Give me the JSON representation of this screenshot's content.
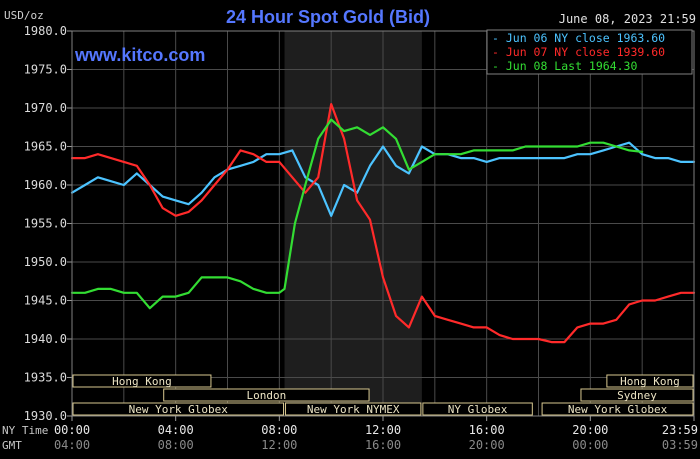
{
  "chart_data": {
    "type": "line",
    "title": "24 Hour Spot Gold (Bid)",
    "watermark": "www.kitco.com",
    "timestamp": "June 08, 2023 21:59",
    "ylabel": "USD/oz",
    "ylim": [
      1930,
      1980
    ],
    "yticks": [
      "1980.0",
      "1975.0",
      "1970.0",
      "1965.0",
      "1960.0",
      "1955.0",
      "1950.0",
      "1945.0",
      "1940.0",
      "1935.0",
      "1930.0"
    ],
    "xlim": [
      0,
      24
    ],
    "grid": true,
    "legend_position": "top-right",
    "time_rows": [
      {
        "label": "NY Time",
        "ticks": [
          {
            "h": 0,
            "t": "00:00"
          },
          {
            "h": 4,
            "t": "04:00"
          },
          {
            "h": 8,
            "t": "08:00"
          },
          {
            "h": 12,
            "t": "12:00"
          },
          {
            "h": 16,
            "t": "16:00"
          },
          {
            "h": 20,
            "t": "20:00"
          },
          {
            "h": 24,
            "t": "23:59"
          }
        ]
      },
      {
        "label": "GMT",
        "ticks": [
          {
            "h": 0,
            "t": "04:00"
          },
          {
            "h": 4,
            "t": "08:00"
          },
          {
            "h": 8,
            "t": "12:00"
          },
          {
            "h": 12,
            "t": "16:00"
          },
          {
            "h": 16,
            "t": "20:00"
          },
          {
            "h": 20,
            "t": "00:00"
          },
          {
            "h": 24,
            "t": "03:59"
          }
        ]
      }
    ],
    "nymex_shade": [
      8.2,
      13.5
    ],
    "sessions": [
      {
        "name": "Hong Kong",
        "start": 0,
        "end": 5.4,
        "row": 0
      },
      {
        "name": "Hong Kong",
        "start": 20.6,
        "end": 24,
        "row": 0
      },
      {
        "name": "London",
        "start": 3.5,
        "end": 11.5,
        "row": 1
      },
      {
        "name": "Sydney",
        "start": 19.6,
        "end": 24,
        "row": 1
      },
      {
        "name": "New York Globex",
        "start": 0,
        "end": 8.2,
        "row": 2
      },
      {
        "name": "New York NYMEX",
        "start": 8.2,
        "end": 13.5,
        "row": 2
      },
      {
        "name": "NY Globex",
        "start": 13.5,
        "end": 17.8,
        "row": 2
      },
      {
        "name": "New York Globex",
        "start": 18.1,
        "end": 24,
        "row": 2
      }
    ],
    "series": [
      {
        "name": "Jun 06 NY close 1963.60",
        "color": "#4cc3ff",
        "x": [
          0,
          0.5,
          1,
          1.5,
          2,
          2.5,
          3,
          3.5,
          4,
          4.5,
          5,
          5.5,
          6,
          6.5,
          7,
          7.5,
          8,
          8.5,
          9,
          9.5,
          10,
          10.5,
          11,
          11.5,
          12,
          12.5,
          13,
          13.5,
          14,
          14.5,
          15,
          15.5,
          16,
          16.5,
          17,
          17.5,
          18,
          18.5,
          19,
          19.5,
          20,
          20.5,
          21,
          21.5,
          22,
          22.5,
          23,
          23.5,
          24
        ],
        "y": [
          1959,
          1960,
          1961,
          1960.5,
          1960,
          1961.5,
          1960,
          1958.5,
          1958,
          1957.5,
          1959,
          1961,
          1962,
          1962.5,
          1963,
          1964,
          1964,
          1964.5,
          1961,
          1960,
          1956,
          1960,
          1959,
          1962.5,
          1965,
          1962.5,
          1961.5,
          1965,
          1964,
          1964,
          1963.5,
          1963.5,
          1963,
          1963.5,
          1963.5,
          1963.5,
          1963.5,
          1963.5,
          1963.5,
          1964,
          1964,
          1964.5,
          1965,
          1965.5,
          1964,
          1963.5,
          1963.5,
          1963,
          1963
        ]
      },
      {
        "name": "Jun 07 NY close 1939.60",
        "color": "#ff2a2a",
        "x": [
          0,
          0.5,
          1,
          1.5,
          2,
          2.5,
          3,
          3.5,
          4,
          4.5,
          5,
          5.5,
          6,
          6.5,
          7,
          7.5,
          8,
          8.5,
          9,
          9.5,
          10,
          10.5,
          11,
          11.5,
          12,
          12.5,
          13,
          13.5,
          14,
          14.5,
          15,
          15.5,
          16,
          16.5,
          17,
          17.5,
          18,
          18.5,
          19,
          19.5,
          20,
          20.5,
          21,
          21.5,
          22,
          22.5,
          23,
          23.5,
          24
        ],
        "y": [
          1963.5,
          1963.5,
          1964,
          1963.5,
          1963,
          1962.5,
          1960,
          1957,
          1956,
          1956.5,
          1958,
          1960,
          1962,
          1964.5,
          1964,
          1963,
          1963,
          1961,
          1959,
          1961,
          1970.5,
          1966,
          1958,
          1955.5,
          1948,
          1943,
          1941.5,
          1945.5,
          1943,
          1942.5,
          1942,
          1941.5,
          1941.5,
          1940.5,
          1940,
          1940,
          1940,
          1939.6,
          1939.6,
          1941.5,
          1942,
          1942,
          1942.5,
          1944.5,
          1945,
          1945,
          1945.5,
          1946,
          1946
        ]
      },
      {
        "name": "Jun 08 Last 1964.30",
        "color": "#33dd33",
        "x": [
          0,
          0.5,
          1,
          1.5,
          2,
          2.5,
          3,
          3.5,
          4,
          4.5,
          5,
          5.5,
          6,
          6.5,
          7,
          7.5,
          8,
          8.2,
          8.6,
          9,
          9.5,
          10,
          10.5,
          11,
          11.5,
          12,
          12.5,
          13,
          13.5,
          14,
          14.5,
          15,
          15.5,
          16,
          16.5,
          17,
          17.5,
          18,
          18.5,
          19,
          19.5,
          20,
          20.5,
          21,
          21.5,
          22
        ],
        "y": [
          1946,
          1946,
          1946.5,
          1946.5,
          1946,
          1946,
          1944,
          1945.5,
          1945.5,
          1946,
          1948,
          1948,
          1948,
          1947.5,
          1946.5,
          1946,
          1946,
          1946.5,
          1955,
          1960,
          1966,
          1968.5,
          1967,
          1967.5,
          1966.5,
          1967.5,
          1966,
          1962,
          1963,
          1964,
          1964,
          1964,
          1964.5,
          1964.5,
          1964.5,
          1964.5,
          1965,
          1965,
          1965,
          1965,
          1965,
          1965.5,
          1965.5,
          1965,
          1964.5,
          1964.3
        ]
      }
    ]
  }
}
